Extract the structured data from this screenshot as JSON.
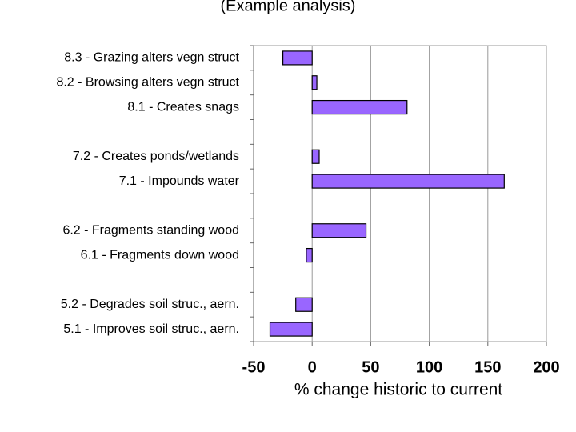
{
  "chart_data": {
    "type": "hbar",
    "title": "(Example analysis)",
    "categories": [
      "8.3 - Grazing alters vegn struct",
      "8.2 - Browsing alters vegn struct",
      "8.1 - Creates snags",
      null,
      "7.2 - Creates ponds/wetlands",
      "7.1 - Impounds water",
      null,
      "6.2 - Fragments standing wood",
      "6.1 - Fragments down wood",
      null,
      "5.2 - Degrades soil struc., aern.",
      "5.1 - Improves soil struc., aern."
    ],
    "values": [
      -25,
      4,
      81,
      null,
      6,
      164,
      null,
      46,
      -5,
      null,
      -14,
      -36
    ],
    "color": "#9966ff",
    "xlabel": "% change historic to current",
    "xlim": [
      -50,
      200
    ],
    "xticks": [
      -50,
      0,
      50,
      100,
      150,
      200
    ],
    "grid": true
  }
}
